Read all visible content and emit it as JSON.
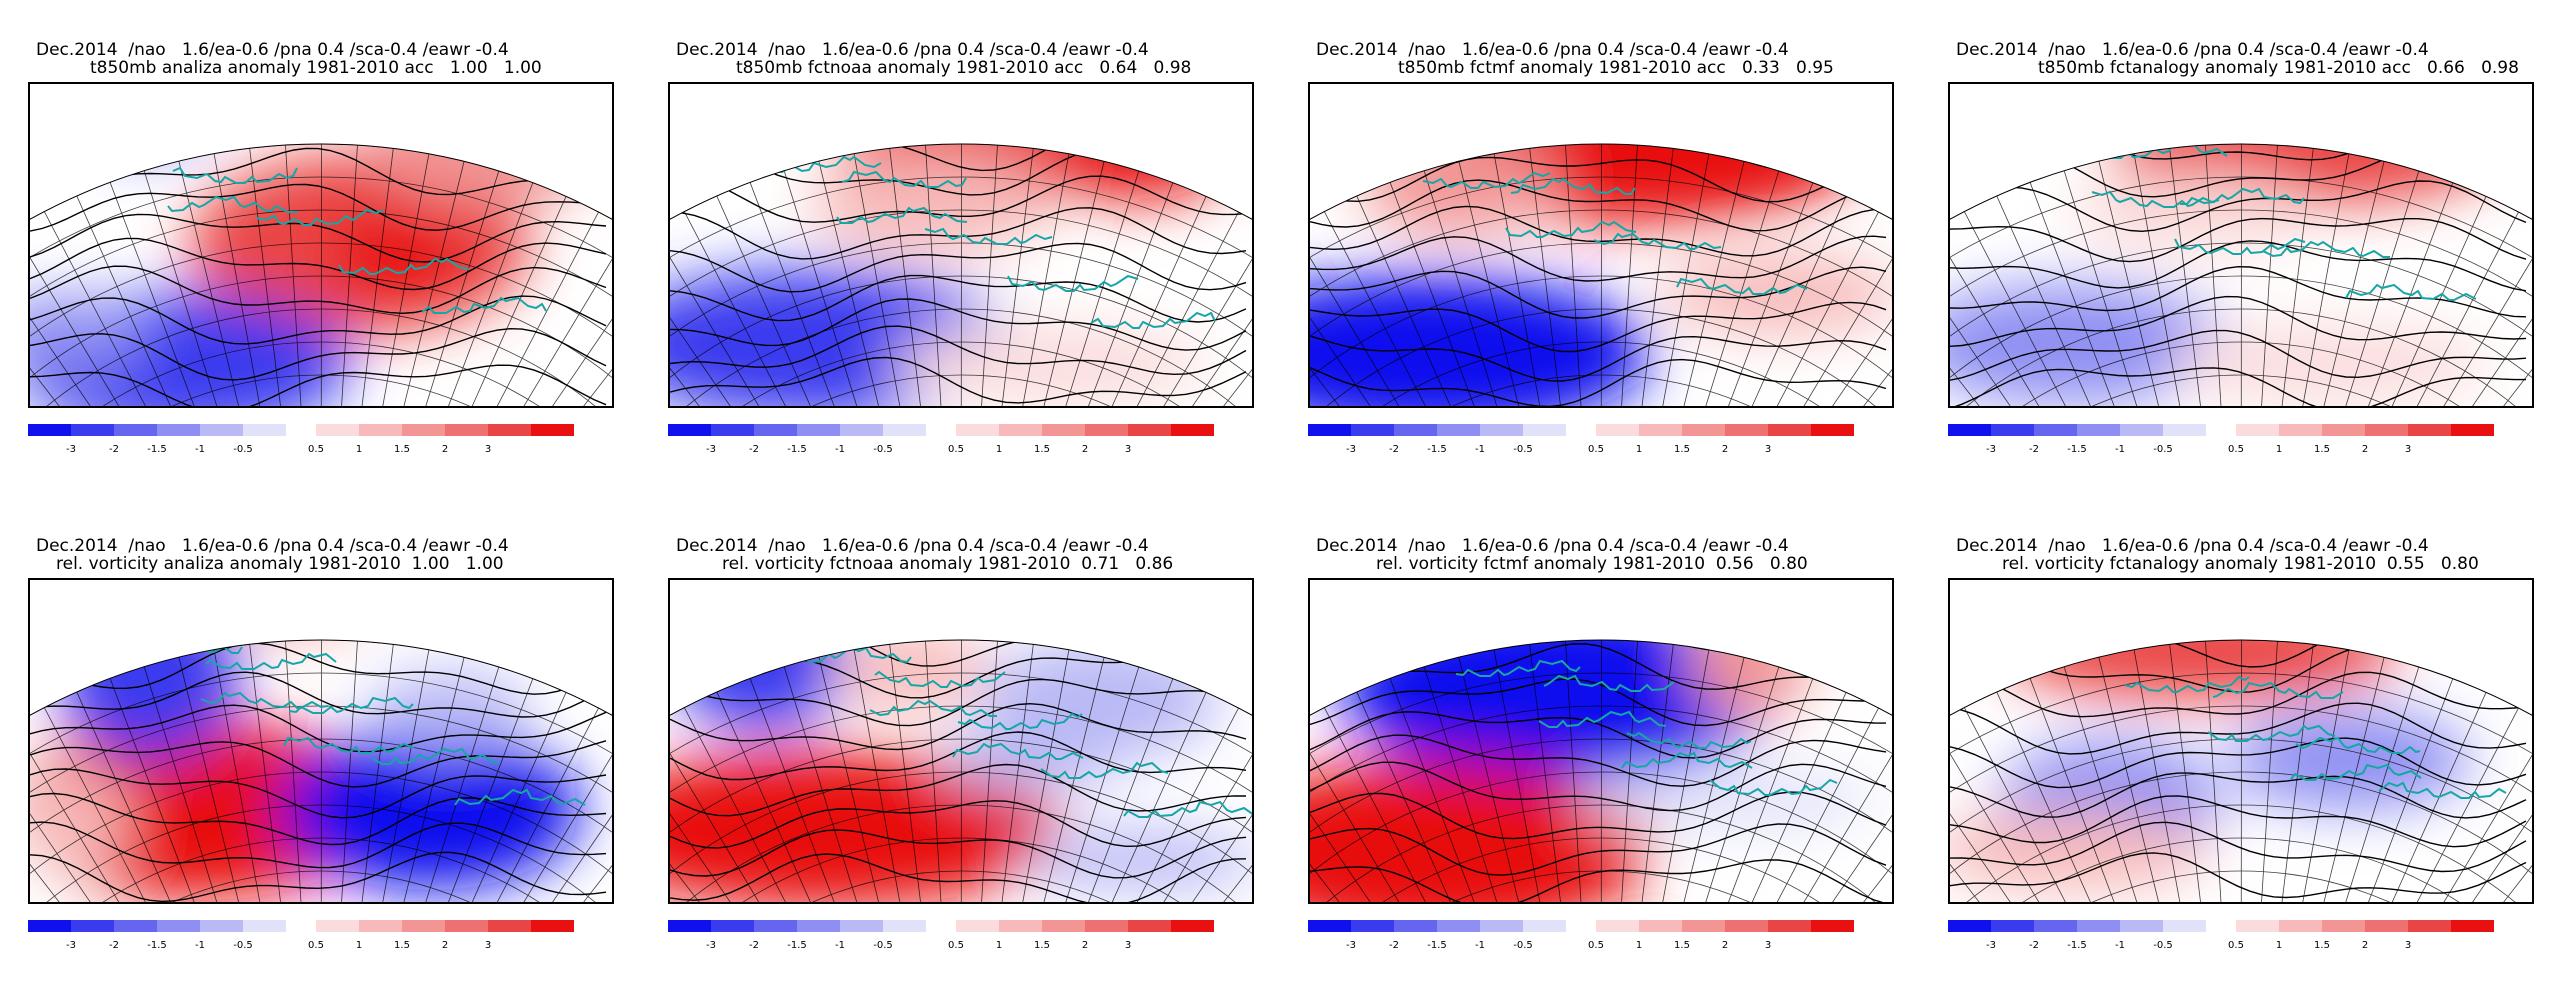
{
  "colorbar": {
    "neg_colors": [
      "#1010ee",
      "#3a3aef",
      "#6565f0",
      "#8f8ff3",
      "#b9b9f6",
      "#e1e1fa"
    ],
    "pos_colors": [
      "#fbdcdc",
      "#f7b9b9",
      "#f29595",
      "#ee7070",
      "#ea4545",
      "#e81010"
    ],
    "neg_labels": [
      "-3",
      "-2",
      "-1.5",
      "-1",
      "-0.5"
    ],
    "pos_labels": [
      "0.5",
      "1",
      "1.5",
      "2",
      "3"
    ]
  },
  "panels": [
    {
      "line1": "Dec.2014  /nao   1.6/ea-0.6 /pna 0.4 /sca-0.4 /eawr -0.4",
      "line2": "t850mb analiza anomaly 1981-2010 acc   1.00   1.00"
    },
    {
      "line1": "Dec.2014  /nao   1.6/ea-0.6 /pna 0.4 /sca-0.4 /eawr -0.4",
      "line2": "t850mb fctnoaa anomaly 1981-2010 acc   0.64   0.98"
    },
    {
      "line1": "Dec.2014  /nao   1.6/ea-0.6 /pna 0.4 /sca-0.4 /eawr -0.4",
      "line2": "t850mb fctmf anomaly 1981-2010 acc   0.33   0.95"
    },
    {
      "line1": "Dec.2014  /nao   1.6/ea-0.6 /pna 0.4 /sca-0.4 /eawr -0.4",
      "line2": "t850mb fctanalogy anomaly 1981-2010 acc   0.66   0.98"
    },
    {
      "line1": "Dec.2014  /nao   1.6/ea-0.6 /pna 0.4 /sca-0.4 /eawr -0.4",
      "line2": "rel. vorticity analiza anomaly 1981-2010  1.00   1.00"
    },
    {
      "line1": "Dec.2014  /nao   1.6/ea-0.6 /pna 0.4 /sca-0.4 /eawr -0.4",
      "line2": "rel. vorticity fctnoaa anomaly 1981-2010  0.71   0.86"
    },
    {
      "line1": "Dec.2014  /nao   1.6/ea-0.6 /pna 0.4 /sca-0.4 /eawr -0.4",
      "line2": "rel. vorticity fctmf anomaly 1981-2010  0.56   0.80"
    },
    {
      "line1": "Dec.2014  /nao   1.6/ea-0.6 /pna 0.4 /sca-0.4 /eawr -0.4",
      "line2": "rel. vorticity fctanalogy anomaly 1981-2010  0.55   0.80"
    }
  ]
}
